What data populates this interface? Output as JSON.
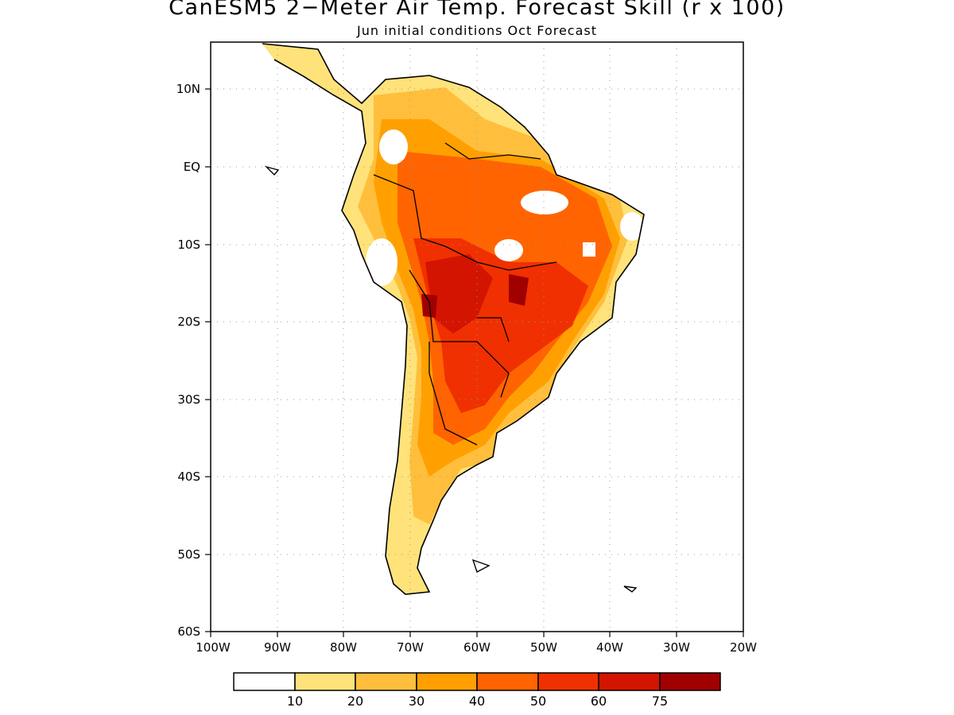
{
  "title": "CanESM5 2−Meter Air Temp. Forecast Skill (r x 100)",
  "subtitle": "Jun initial conditions  Oct Forecast",
  "lat_ticks": [
    "10N",
    "EQ",
    "10S",
    "20S",
    "30S",
    "40S",
    "50S",
    "60S"
  ],
  "lon_ticks": [
    "100W",
    "90W",
    "80W",
    "70W",
    "60W",
    "50W",
    "40W",
    "30W",
    "20W"
  ],
  "colorbar": {
    "colors": [
      "#ffffff",
      "#ffe27a",
      "#ffbf3c",
      "#ffa000",
      "#ff6400",
      "#f03000",
      "#d21400",
      "#a00000"
    ],
    "labels": [
      "10",
      "20",
      "30",
      "40",
      "50",
      "60",
      "75"
    ]
  },
  "map": {
    "extent": {
      "lon": [
        -100,
        -20
      ],
      "lat": [
        -60,
        5
      ]
    },
    "grid": "dotted",
    "ocean_color": "#ffffff",
    "land_outline": "#000000"
  }
}
